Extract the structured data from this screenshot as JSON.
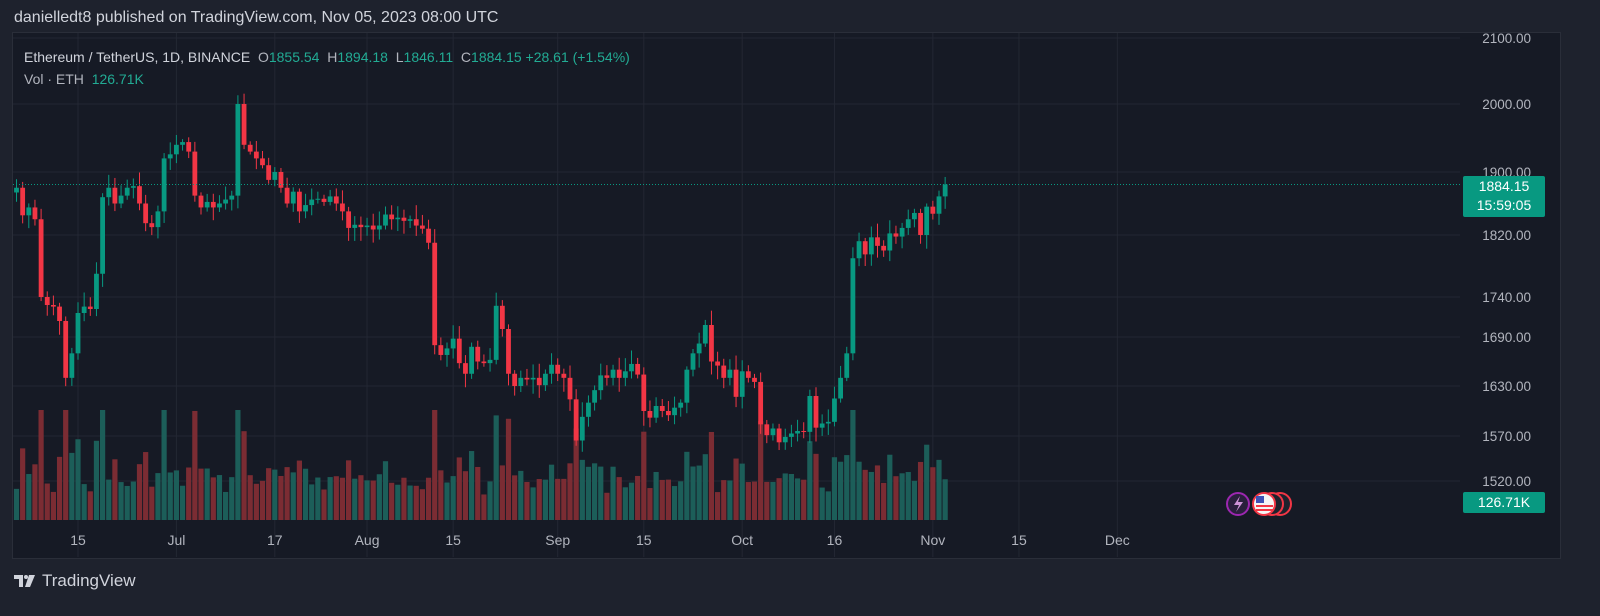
{
  "header": {
    "publish_line": "danielledt8 published on TradingView.com, Nov 05, 2023 08:00 UTC"
  },
  "legend": {
    "symbol": "Ethereum / TetherUS, 1D, BINANCE",
    "o_label": "O",
    "o_value": "1855.54",
    "h_label": "H",
    "h_value": "1894.18",
    "l_label": "L",
    "l_value": "1846.11",
    "c_label": "C",
    "c_value": "1884.15",
    "change": "+28.61 (+1.54%)",
    "vol_label": "Vol · ETH",
    "vol_value": "126.71K"
  },
  "price_tag": {
    "last_price": "1884.15",
    "countdown": "15:59:05"
  },
  "volume_tag": {
    "value": "126.71K"
  },
  "footer": {
    "brand": "TradingView"
  },
  "colors": {
    "up": "#089981",
    "down": "#f23645",
    "up_vol": "#1c5e59",
    "down_vol": "#7b2c33",
    "grid": "#232733"
  },
  "chart_data": {
    "type": "candlestick",
    "y_ticks": [
      "2100.00",
      "2000.00",
      "1900.00",
      "1820.00",
      "1740.00",
      "1690.00",
      "1630.00",
      "1570.00",
      "1520.00"
    ],
    "y_tick_values": [
      2100,
      2000,
      1900,
      1820,
      1740,
      1690,
      1630,
      1570,
      1520
    ],
    "x_ticks": [
      "15",
      "Jul",
      "17",
      "Aug",
      "15",
      "Sep",
      "15",
      "Oct",
      "16",
      "Nov",
      "15",
      "Dec"
    ],
    "x_tick_dates": [
      "2023-06-15",
      "2023-07-01",
      "2023-07-17",
      "2023-08-01",
      "2023-08-15",
      "2023-09-01",
      "2023-09-15",
      "2023-10-01",
      "2023-10-16",
      "2023-11-01",
      "2023-11-15",
      "2023-12-01"
    ],
    "first_date": "2023-06-05",
    "last_price": 1884.15,
    "close": [
      1880,
      1845,
      1855,
      1840,
      1740,
      1730,
      1728,
      1710,
      1640,
      1670,
      1720,
      1728,
      1725,
      1770,
      1868,
      1880,
      1860,
      1870,
      1880,
      1882,
      1860,
      1835,
      1830,
      1850,
      1920,
      1926,
      1940,
      1944,
      1930,
      1870,
      1855,
      1862,
      1855,
      1860,
      1865,
      1870,
      2000,
      1940,
      1930,
      1920,
      1910,
      1890,
      1900,
      1880,
      1860,
      1875,
      1850,
      1858,
      1865,
      1866,
      1862,
      1869,
      1860,
      1850,
      1829,
      1833,
      1830,
      1832,
      1827,
      1832,
      1846,
      1840,
      1842,
      1838,
      1840,
      1832,
      1828,
      1810,
      1680,
      1668,
      1676,
      1688,
      1658,
      1645,
      1678,
      1660,
      1658,
      1662,
      1729,
      1700,
      1645,
      1630,
      1640,
      1638,
      1640,
      1631,
      1645,
      1656,
      1645,
      1640,
      1614,
      1565,
      1593,
      1610,
      1625,
      1643,
      1640,
      1650,
      1640,
      1648,
      1657,
      1644,
      1600,
      1592,
      1606,
      1600,
      1595,
      1604,
      1610,
      1650,
      1670,
      1682,
      1705,
      1660,
      1655,
      1640,
      1650,
      1617,
      1648,
      1640,
      1635,
      1584,
      1571,
      1579,
      1563,
      1569,
      1573,
      1576,
      1575,
      1618,
      1580,
      1585,
      1587,
      1615,
      1640,
      1670,
      1790,
      1812,
      1795,
      1817,
      1806,
      1800,
      1822,
      1818,
      1829,
      1840,
      1848,
      1820,
      1856,
      1847,
      1869,
      1884.15
    ],
    "volume_max_label": "126.71K"
  }
}
